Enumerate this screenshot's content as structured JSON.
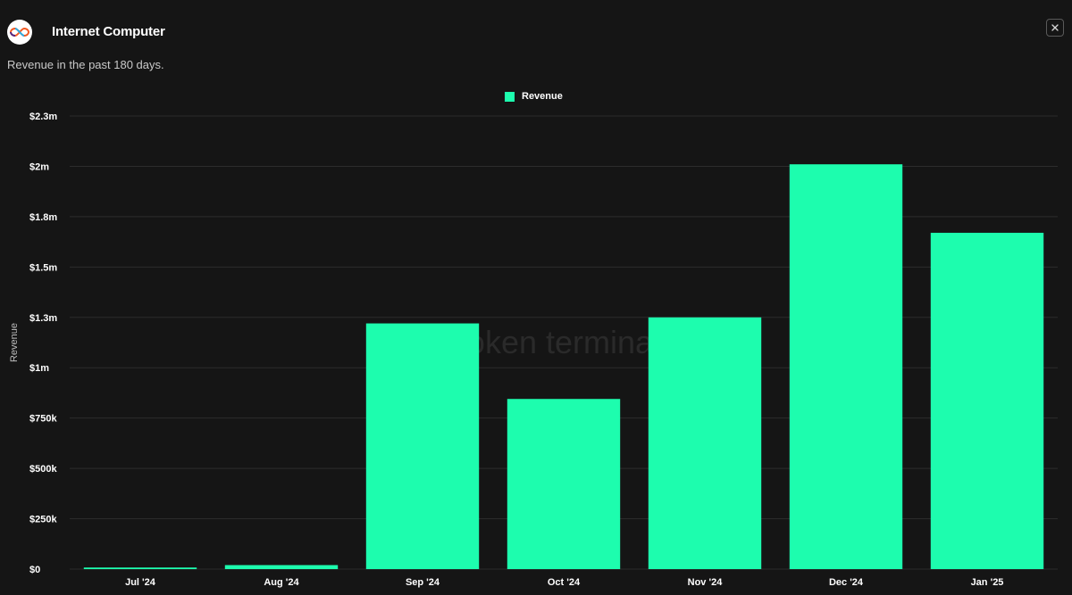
{
  "header": {
    "title": "Internet Computer",
    "subtitle": "Revenue in the past 180 days.",
    "logo_icon": "internet-computer-infinity-logo",
    "close_icon": "close-icon"
  },
  "watermark": "token terminal_",
  "colors": {
    "background": "#151515",
    "bar": "#1dfdae",
    "gridline": "#2c2c2c"
  },
  "chart_data": {
    "type": "bar",
    "categories": [
      "Jul '24",
      "Aug '24",
      "Sep '24",
      "Oct '24",
      "Nov '24",
      "Dec '24",
      "Jan '25"
    ],
    "series": [
      {
        "name": "Revenue",
        "values": [
          8000,
          20000,
          1220000,
          845000,
          1250000,
          2010000,
          1670000
        ]
      }
    ],
    "ylabel": "Revenue",
    "ylim": [
      0,
      2250000
    ],
    "yticks": [
      0,
      250000,
      500000,
      750000,
      1000000,
      1250000,
      1500000,
      1750000,
      2000000,
      2250000
    ],
    "ytick_labels": [
      "$0",
      "$250k",
      "$500k",
      "$750k",
      "$1m",
      "$1.3m",
      "$1.5m",
      "$1.8m",
      "$2m",
      "$2.3m"
    ],
    "grid": true,
    "legend": "top-center"
  }
}
